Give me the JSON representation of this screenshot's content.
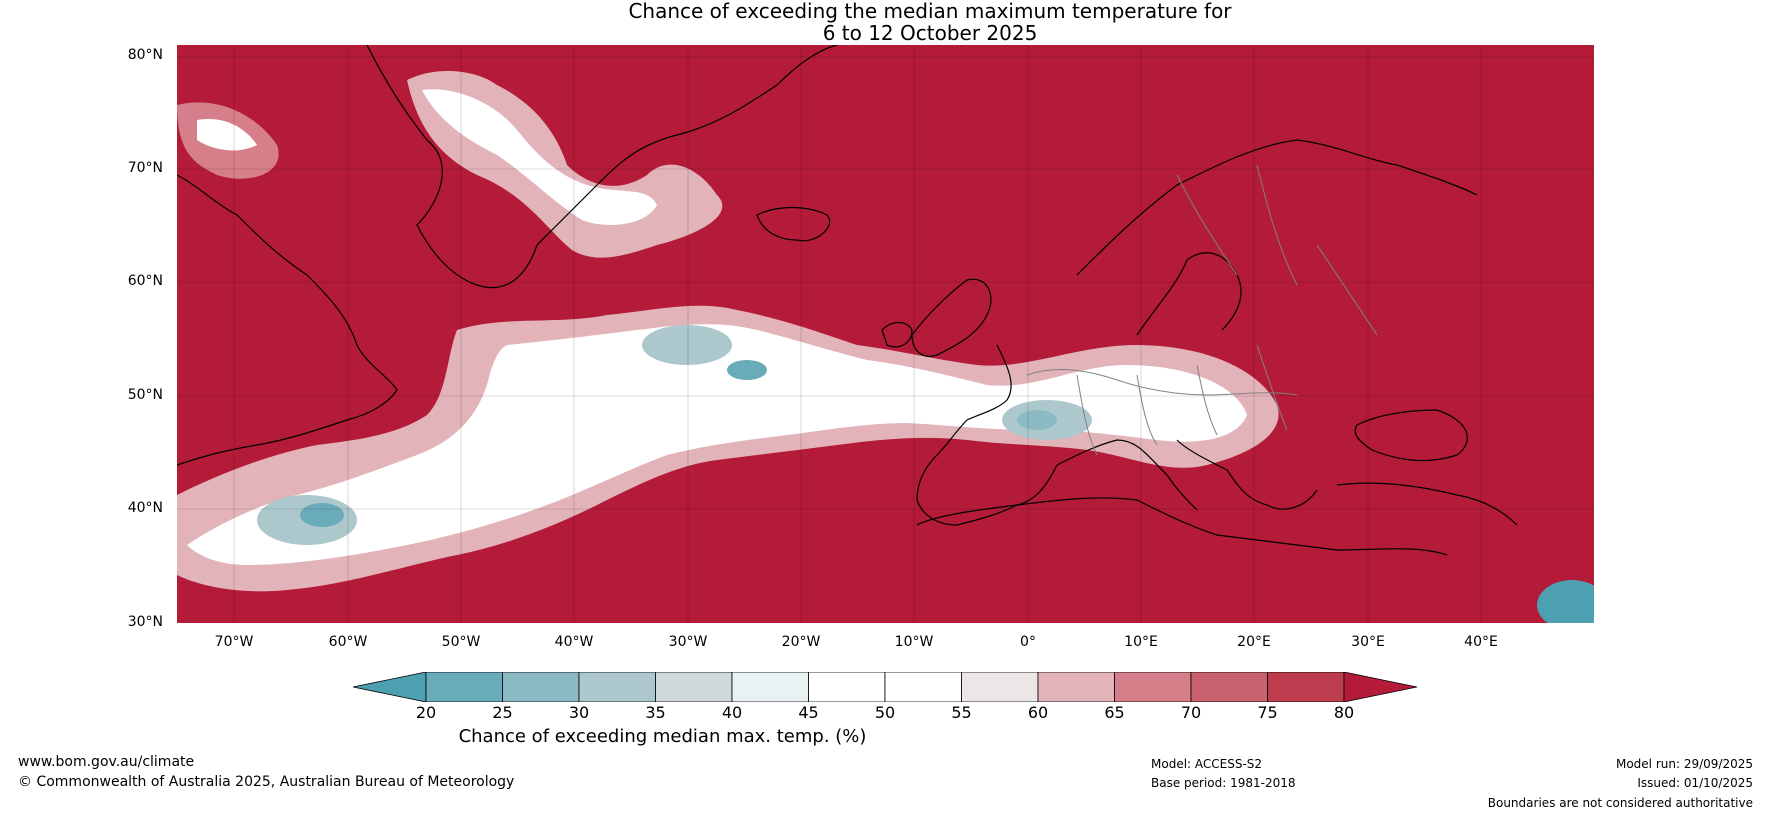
{
  "title": {
    "line1": "Chance of exceeding the median maximum temperature for",
    "line2": "6 to 12 October 2025"
  },
  "map": {
    "lat_labels": [
      "80°N",
      "70°N",
      "60°N",
      "50°N",
      "40°N",
      "30°N"
    ],
    "lon_labels": [
      "70°W",
      "60°W",
      "50°W",
      "40°W",
      "30°W",
      "20°W",
      "10°W",
      "0°",
      "10°E",
      "20°E",
      "30°E",
      "40°E"
    ],
    "colors": {
      "ocean_warm": "#b31b38",
      "land_outline": "#000000",
      "border": "#808080"
    }
  },
  "colorbar": {
    "label": "Chance of exceeding median max. temp. (%)",
    "ticks": [
      "20",
      "25",
      "30",
      "35",
      "40",
      "45",
      "50",
      "55",
      "60",
      "65",
      "70",
      "75",
      "80"
    ],
    "colors": [
      "#4ca0b0",
      "#6aabb9",
      "#8bbac5",
      "#adc8cd",
      "#cfd9da",
      "#eaf1f2",
      "#ffffff",
      "#ffffff",
      "#ece6e7",
      "#e2b4ba",
      "#d67e89",
      "#c9616e",
      "#bd3c4d",
      "#b31b38"
    ]
  },
  "footer": {
    "website": "www.bom.gov.au/climate",
    "copyright": "© Commonwealth of Australia 2025, Australian Bureau of Meteorology",
    "model": "Model: ACCESS-S2",
    "base_period": "Base period: 1981-2018",
    "model_run": "Model run: 29/09/2025",
    "issued": "Issued: 01/10/2025",
    "boundaries": "Boundaries are not considered authoritative"
  }
}
